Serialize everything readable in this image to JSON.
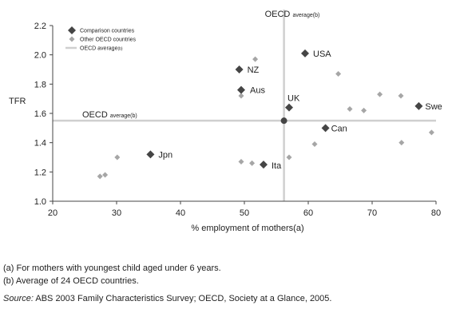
{
  "chart_data": {
    "type": "scatter",
    "title": "",
    "xlabel": "% employment of mothers(a)",
    "ylabel": "TFR",
    "xlim": [
      20,
      80
    ],
    "ylim": [
      1.0,
      2.2
    ],
    "xticks": [
      "20",
      "30",
      "40",
      "50",
      "60",
      "70",
      "80"
    ],
    "yticks": [
      "1.0",
      "1.2",
      "1.4",
      "1.6",
      "1.8",
      "2.0",
      "2.2"
    ],
    "grid": false,
    "legend_position": "top-left",
    "legend": {
      "comparison": "Comparison countries",
      "other": "Other OECD countries",
      "average": "OECD average",
      "average_sub": "(b)"
    },
    "reference_lines": {
      "x": 56.2,
      "y": 1.55,
      "vertical_label": "OECD",
      "vertical_sub": "average(b)",
      "horizontal_label": "OECD",
      "horizontal_sub": "average(b)"
    },
    "series": [
      {
        "name": "Comparison countries",
        "points": [
          {
            "label": "USA",
            "x": 59.5,
            "y": 2.01
          },
          {
            "label": "NZ",
            "x": 49.2,
            "y": 1.9
          },
          {
            "label": "Aus",
            "x": 49.5,
            "y": 1.76
          },
          {
            "label": "UK",
            "x": 57.0,
            "y": 1.64
          },
          {
            "label": "Swe",
            "x": 77.3,
            "y": 1.65
          },
          {
            "label": "Can",
            "x": 62.7,
            "y": 1.5
          },
          {
            "label": "Jpn",
            "x": 35.3,
            "y": 1.32
          },
          {
            "label": "Ita",
            "x": 53.0,
            "y": 1.25
          }
        ]
      },
      {
        "name": "Other OECD countries",
        "points": [
          {
            "x": 51.7,
            "y": 1.97
          },
          {
            "x": 49.5,
            "y": 1.72
          },
          {
            "x": 64.7,
            "y": 1.87
          },
          {
            "x": 66.5,
            "y": 1.63
          },
          {
            "x": 68.7,
            "y": 1.62
          },
          {
            "x": 71.2,
            "y": 1.73
          },
          {
            "x": 74.5,
            "y": 1.72
          },
          {
            "x": 79.3,
            "y": 1.47
          },
          {
            "x": 74.6,
            "y": 1.4
          },
          {
            "x": 61.0,
            "y": 1.39
          },
          {
            "x": 57.0,
            "y": 1.3
          },
          {
            "x": 49.5,
            "y": 1.27
          },
          {
            "x": 51.2,
            "y": 1.26
          },
          {
            "x": 30.1,
            "y": 1.3
          },
          {
            "x": 28.2,
            "y": 1.18
          },
          {
            "x": 27.4,
            "y": 1.17
          }
        ]
      },
      {
        "name": "OECD average",
        "points": [
          {
            "x": 56.2,
            "y": 1.55
          }
        ]
      }
    ]
  },
  "notes": {
    "a": "(a) For mothers with youngest child aged under 6 years.",
    "b": "(b) Average of 24 OECD countries.",
    "source_label": "Source:",
    "source_text": " ABS 2003 Family Characteristics Survey; OECD, Society at a Glance, 2005."
  },
  "colors": {
    "comparison": "#454545",
    "other": "#a6a6a6",
    "reference": "#cfcfcf",
    "axis": "#444444"
  }
}
